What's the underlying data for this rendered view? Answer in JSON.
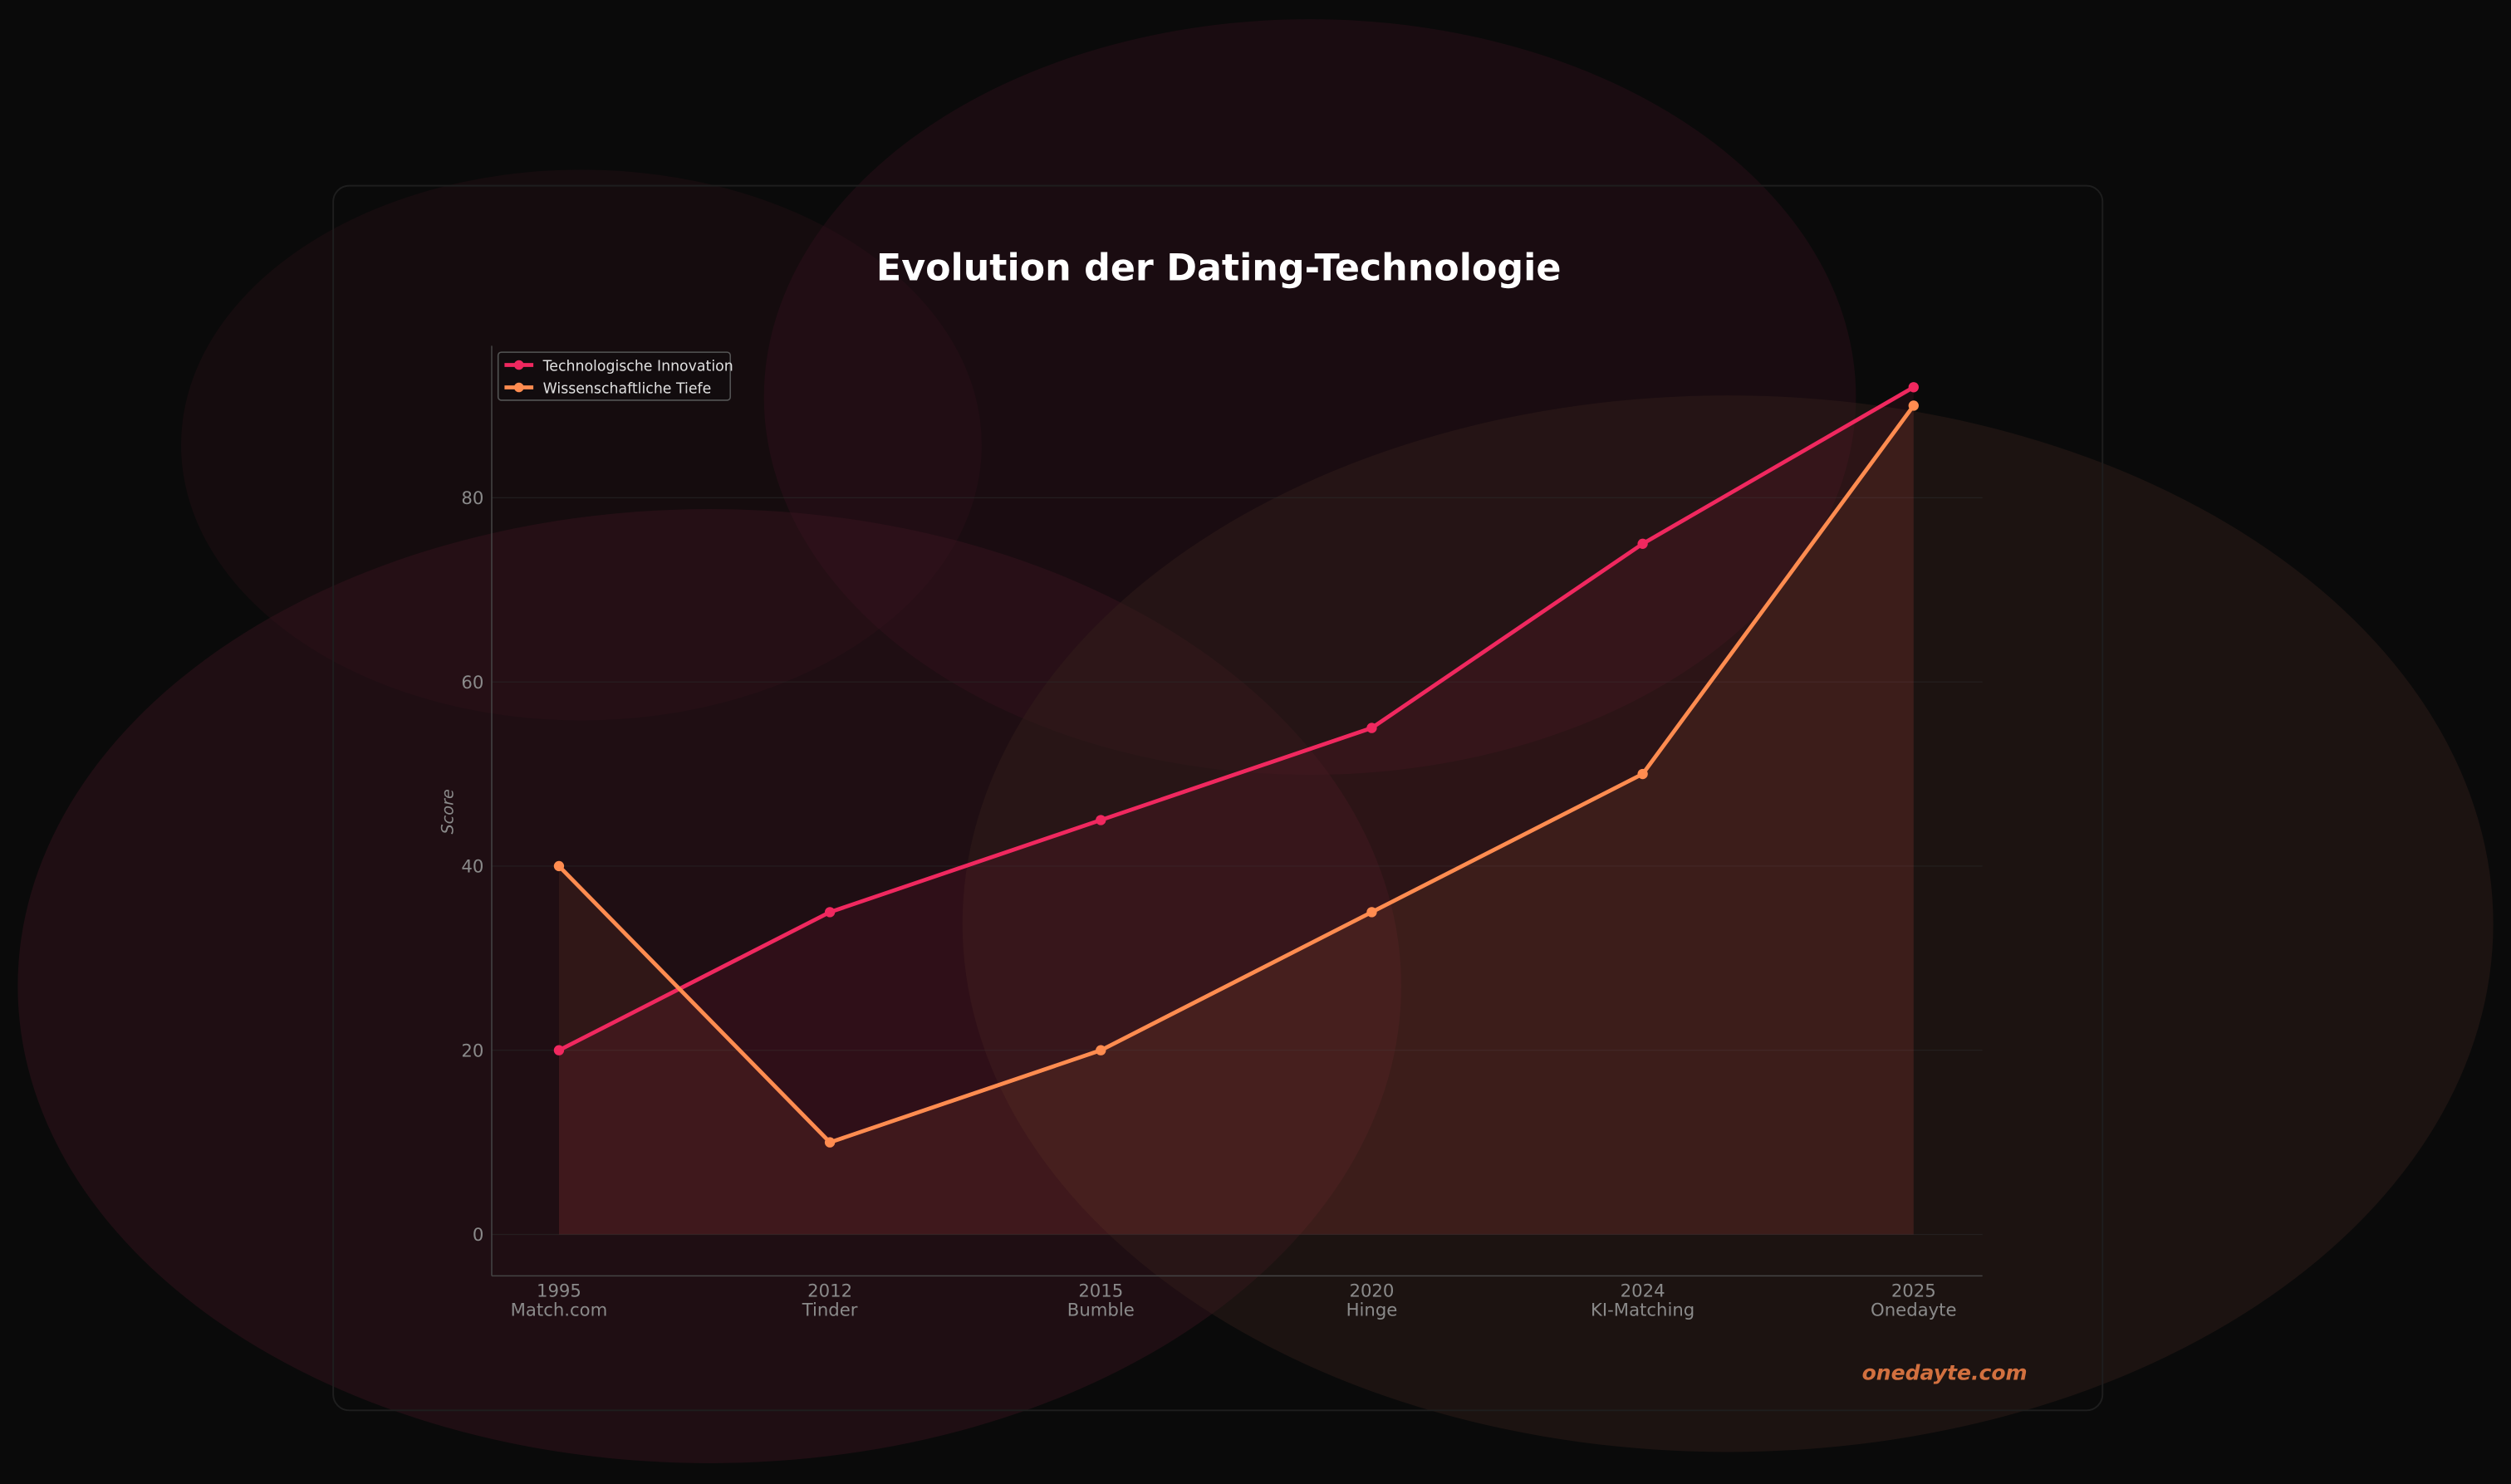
{
  "chart_data": {
    "type": "line",
    "title": "Evolution der Dating-Technologie",
    "xlabel": "",
    "ylabel": "Score",
    "categories": [
      [
        "1995",
        "Match.com"
      ],
      [
        "2012",
        "Tinder"
      ],
      [
        "2015",
        "Bumble"
      ],
      [
        "2020",
        "Hinge"
      ],
      [
        "2024",
        "KI-Matching"
      ],
      [
        "2025",
        "Onedayte"
      ]
    ],
    "yticks": [
      0,
      20,
      40,
      60,
      80
    ],
    "ylim": [
      -4.5,
      96.5
    ],
    "grid": true,
    "legend_position": "top-left",
    "series": [
      {
        "name": "Technologische Innovation",
        "color": "#f0285f",
        "values": [
          20,
          35,
          45,
          55,
          75,
          92
        ],
        "fill": true
      },
      {
        "name": "Wissenschaftliche Tiefe",
        "color": "#ff8c50",
        "values": [
          40,
          10,
          20,
          35,
          50,
          90
        ],
        "fill": true
      }
    ]
  },
  "watermark": "onedayte.com",
  "colors": {
    "background": "#0a0a0a",
    "watermark": "#d2703f",
    "text": "#ffffff",
    "tick": "#8a8a8a"
  }
}
